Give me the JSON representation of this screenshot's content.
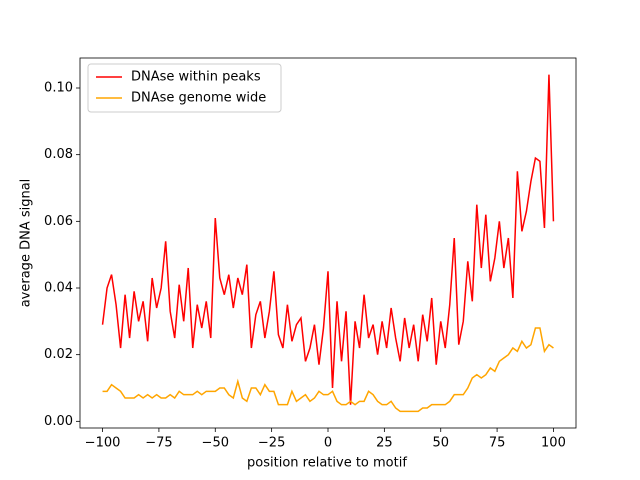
{
  "chart_data": {
    "type": "line",
    "xlabel": "position relative to motif",
    "ylabel": "average DNA signal",
    "x": [
      -100,
      -98,
      -96,
      -94,
      -92,
      -90,
      -88,
      -86,
      -84,
      -82,
      -80,
      -78,
      -76,
      -74,
      -72,
      -70,
      -68,
      -66,
      -64,
      -62,
      -60,
      -58,
      -56,
      -54,
      -52,
      -50,
      -48,
      -46,
      -44,
      -42,
      -40,
      -38,
      -36,
      -34,
      -32,
      -30,
      -28,
      -26,
      -24,
      -22,
      -20,
      -18,
      -16,
      -14,
      -12,
      -10,
      -8,
      -6,
      -4,
      -2,
      0,
      2,
      4,
      6,
      8,
      10,
      12,
      14,
      16,
      18,
      20,
      22,
      24,
      26,
      28,
      30,
      32,
      34,
      36,
      38,
      40,
      42,
      44,
      46,
      48,
      50,
      52,
      54,
      56,
      58,
      60,
      62,
      64,
      66,
      68,
      70,
      72,
      74,
      76,
      78,
      80,
      82,
      84,
      86,
      88,
      90,
      92,
      94,
      96,
      98,
      100
    ],
    "series": [
      {
        "name": "DNAse within peaks",
        "color": "#ff0000",
        "values": [
          0.029,
          0.04,
          0.044,
          0.035,
          0.022,
          0.038,
          0.025,
          0.039,
          0.03,
          0.036,
          0.024,
          0.043,
          0.034,
          0.04,
          0.054,
          0.033,
          0.025,
          0.041,
          0.03,
          0.046,
          0.022,
          0.035,
          0.028,
          0.036,
          0.025,
          0.061,
          0.043,
          0.038,
          0.044,
          0.034,
          0.043,
          0.038,
          0.047,
          0.022,
          0.032,
          0.036,
          0.025,
          0.033,
          0.045,
          0.026,
          0.022,
          0.035,
          0.024,
          0.029,
          0.031,
          0.018,
          0.022,
          0.029,
          0.017,
          0.028,
          0.045,
          0.01,
          0.036,
          0.018,
          0.033,
          0.005,
          0.03,
          0.022,
          0.038,
          0.025,
          0.029,
          0.02,
          0.03,
          0.022,
          0.034,
          0.025,
          0.018,
          0.031,
          0.022,
          0.029,
          0.018,
          0.032,
          0.024,
          0.037,
          0.017,
          0.03,
          0.022,
          0.035,
          0.055,
          0.023,
          0.03,
          0.048,
          0.036,
          0.065,
          0.046,
          0.062,
          0.042,
          0.049,
          0.06,
          0.046,
          0.055,
          0.037,
          0.075,
          0.057,
          0.063,
          0.072,
          0.079,
          0.078,
          0.058,
          0.104,
          0.06
        ]
      },
      {
        "name": "DNAse genome wide",
        "color": "#ffa500",
        "values": [
          0.009,
          0.009,
          0.011,
          0.01,
          0.009,
          0.007,
          0.007,
          0.007,
          0.008,
          0.007,
          0.008,
          0.007,
          0.008,
          0.007,
          0.007,
          0.008,
          0.007,
          0.009,
          0.008,
          0.008,
          0.008,
          0.009,
          0.008,
          0.009,
          0.009,
          0.009,
          0.01,
          0.01,
          0.008,
          0.007,
          0.012,
          0.007,
          0.006,
          0.01,
          0.01,
          0.008,
          0.011,
          0.009,
          0.009,
          0.005,
          0.005,
          0.005,
          0.009,
          0.006,
          0.007,
          0.008,
          0.006,
          0.007,
          0.009,
          0.008,
          0.008,
          0.009,
          0.006,
          0.005,
          0.005,
          0.006,
          0.005,
          0.006,
          0.006,
          0.009,
          0.008,
          0.006,
          0.005,
          0.005,
          0.006,
          0.004,
          0.003,
          0.003,
          0.003,
          0.003,
          0.003,
          0.004,
          0.004,
          0.005,
          0.005,
          0.005,
          0.005,
          0.006,
          0.008,
          0.008,
          0.008,
          0.01,
          0.013,
          0.014,
          0.013,
          0.014,
          0.016,
          0.015,
          0.018,
          0.019,
          0.02,
          0.022,
          0.021,
          0.024,
          0.022,
          0.023,
          0.028,
          0.028,
          0.021,
          0.023,
          0.022
        ]
      }
    ],
    "xlim": [
      -110,
      110
    ],
    "xticks": [
      {
        "value": -100,
        "label": "−100"
      },
      {
        "value": -75,
        "label": "−75"
      },
      {
        "value": -50,
        "label": "−50"
      },
      {
        "value": -25,
        "label": "−25"
      },
      0,
      25,
      50,
      75,
      100
    ],
    "ylim": [
      -0.002,
      0.109
    ],
    "yticks": [
      {
        "value": 0,
        "label": "0.00"
      },
      {
        "value": 0.02,
        "label": "0.02"
      },
      {
        "value": 0.04,
        "label": "0.04"
      },
      {
        "value": 0.06,
        "label": "0.06"
      },
      {
        "value": 0.08,
        "label": "0.08"
      },
      {
        "value": 0.1,
        "label": "0.10"
      }
    ],
    "legend": "upper left"
  }
}
